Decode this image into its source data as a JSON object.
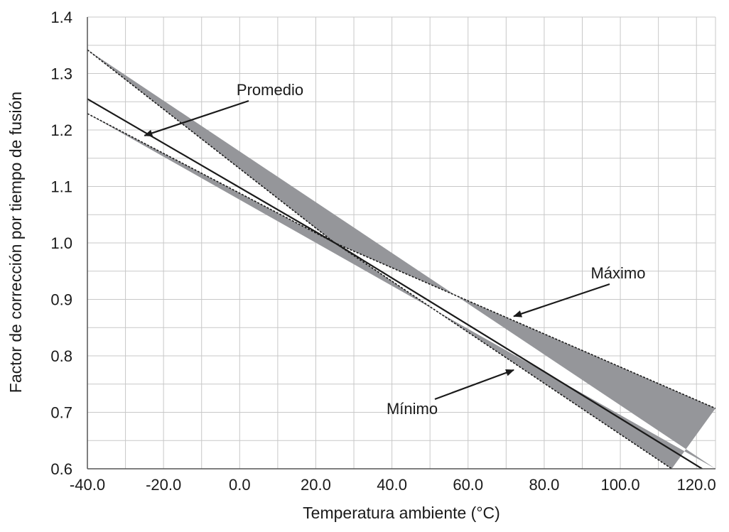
{
  "chart_data": {
    "type": "line",
    "title": "",
    "xlabel": "Temperatura ambiente (°C)",
    "ylabel": "Factor de corrección por tiempo de fusión",
    "xlim": [
      -40,
      125
    ],
    "ylim": [
      0.6,
      1.4
    ],
    "x_ticks": [
      -40,
      -20,
      0,
      20,
      40,
      60,
      80,
      100,
      120
    ],
    "x_tick_labels": [
      "-40.0",
      "-20.0",
      "0.0",
      "20.0",
      "40.0",
      "60.0",
      "80.0",
      "100.0",
      "120.0"
    ],
    "y_ticks": [
      0.6,
      0.7,
      0.8,
      0.9,
      1.0,
      1.1,
      1.2,
      1.3,
      1.4
    ],
    "y_tick_labels": [
      "0.6",
      "0.7",
      "0.8",
      "0.9",
      "1.0",
      "1.1",
      "1.2",
      "1.3",
      "1.4"
    ],
    "grid": true,
    "x_minor_step": 10,
    "y_minor_step": 0.05,
    "series": [
      {
        "name": "Máximo",
        "style": "dashed",
        "x": [
          -40,
          25,
          125
        ],
        "y": [
          1.342,
          1.0,
          0.707
        ]
      },
      {
        "name": "Promedio",
        "style": "solid",
        "x": [
          -40,
          25,
          121.5
        ],
        "y": [
          1.255,
          1.0,
          0.6
        ]
      },
      {
        "name": "Mínimo",
        "style": "dashed",
        "x": [
          -40,
          25,
          113.5
        ],
        "y": [
          1.229,
          1.0,
          0.6
        ]
      }
    ],
    "annotations": [
      {
        "text": "Promedio",
        "points_to": [
          -25,
          1.19
        ]
      },
      {
        "text": "Máximo",
        "points_to": [
          72,
          0.87
        ]
      },
      {
        "text": "Mínimo",
        "points_to": [
          72,
          0.775
        ]
      }
    ],
    "colors": {
      "band": "#95969a",
      "line": "#1a1a1a",
      "grid": "#c8c8c8",
      "axis": "#555555"
    }
  }
}
